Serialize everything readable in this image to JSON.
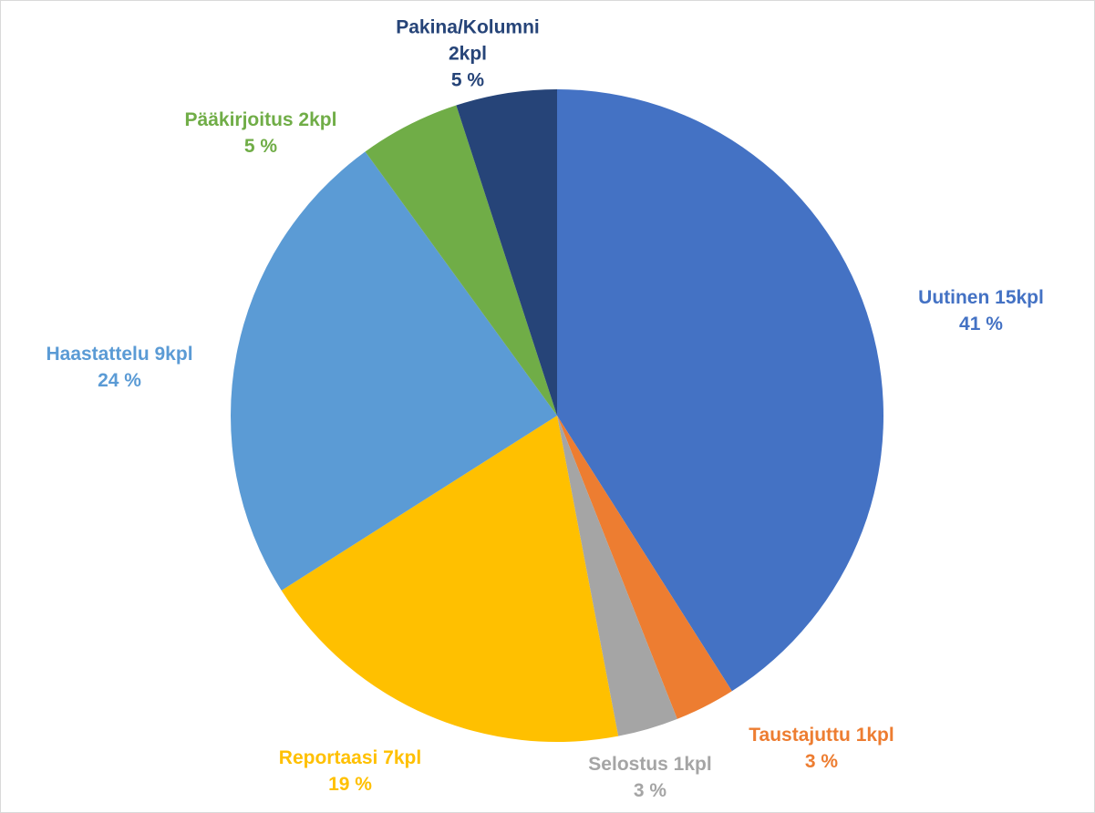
{
  "chart_data": {
    "type": "pie",
    "categories": [
      "Uutinen 15kpl",
      "Taustajuttu 1kpl",
      "Selostus 1kpl",
      "Reportaasi 7kpl",
      "Haastattelu 9kpl",
      "Pääkirjoitus 2kpl",
      "Pakina/Kolumni 2kpl"
    ],
    "values": [
      41,
      3,
      3,
      19,
      24,
      5,
      5
    ],
    "value_labels": [
      "41 %",
      "3 %",
      "3 %",
      "19 %",
      "24 %",
      "5 %",
      "5 %"
    ],
    "colors": [
      "#4472c4",
      "#ed7d31",
      "#a5a5a5",
      "#ffc000",
      "#5b9bd5",
      "#70ad47",
      "#264478"
    ]
  }
}
